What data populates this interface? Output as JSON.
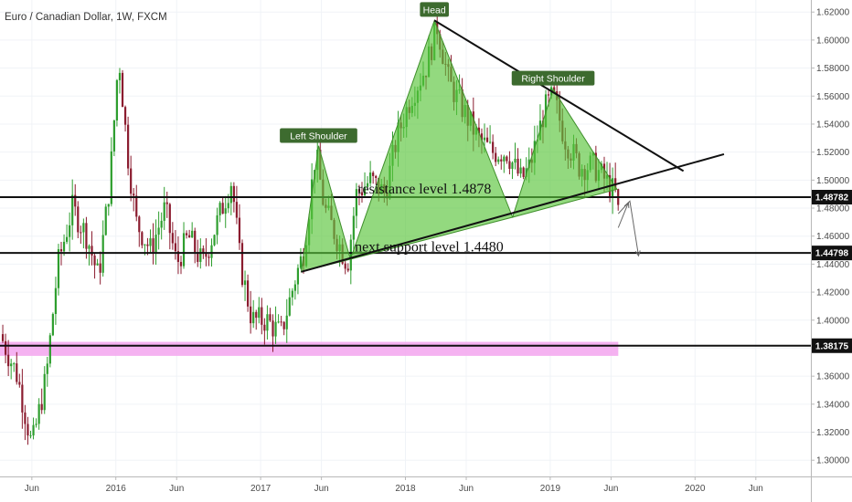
{
  "chart_data": {
    "type": "candlestick",
    "title": "Euro / Canadian Dollar, 1W, FXCM",
    "ylim": [
      1.2884,
      1.6286
    ],
    "xlim": [
      2015.2,
      2020.8
    ],
    "y_ticks": [
      "1.62000",
      "1.60000",
      "1.58000",
      "1.56000",
      "1.54000",
      "1.52000",
      "1.50000",
      "1.48000",
      "1.46000",
      "1.44000",
      "1.42000",
      "1.40000",
      "1.38000",
      "1.36000",
      "1.34000",
      "1.32000",
      "1.30000"
    ],
    "x_ticks": [
      {
        "label": "Jun",
        "t": 2015.42
      },
      {
        "label": "2016",
        "t": 2016.0
      },
      {
        "label": "Jun",
        "t": 2016.42
      },
      {
        "label": "2017",
        "t": 2017.0
      },
      {
        "label": "Jun",
        "t": 2017.42
      },
      {
        "label": "2018",
        "t": 2018.0
      },
      {
        "label": "Jun",
        "t": 2018.42
      },
      {
        "label": "2019",
        "t": 2019.0
      },
      {
        "label": "Jun",
        "t": 2019.42
      },
      {
        "label": "2020",
        "t": 2020.0
      },
      {
        "label": "Jun",
        "t": 2020.42
      }
    ],
    "price_path": [
      [
        2015.2,
        1.39
      ],
      [
        2015.32,
        1.36
      ],
      [
        2015.42,
        1.31
      ],
      [
        2015.52,
        1.36
      ],
      [
        2015.6,
        1.44
      ],
      [
        2015.7,
        1.48
      ],
      [
        2015.8,
        1.46
      ],
      [
        2015.88,
        1.43
      ],
      [
        2015.96,
        1.5
      ],
      [
        2016.02,
        1.59
      ],
      [
        2016.08,
        1.52
      ],
      [
        2016.14,
        1.47
      ],
      [
        2016.24,
        1.45
      ],
      [
        2016.34,
        1.48
      ],
      [
        2016.42,
        1.44
      ],
      [
        2016.5,
        1.46
      ],
      [
        2016.6,
        1.44
      ],
      [
        2016.7,
        1.47
      ],
      [
        2016.8,
        1.5
      ],
      [
        2016.86,
        1.44
      ],
      [
        2016.94,
        1.4
      ],
      [
        2017.04,
        1.4
      ],
      [
        2017.14,
        1.39
      ],
      [
        2017.24,
        1.43
      ],
      [
        2017.3,
        1.45
      ],
      [
        2017.38,
        1.52
      ],
      [
        2017.44,
        1.48
      ],
      [
        2017.52,
        1.46
      ],
      [
        2017.6,
        1.44
      ],
      [
        2017.66,
        1.49
      ],
      [
        2017.76,
        1.5
      ],
      [
        2017.86,
        1.49
      ],
      [
        2017.94,
        1.53
      ],
      [
        2018.04,
        1.56
      ],
      [
        2018.14,
        1.58
      ],
      [
        2018.22,
        1.61
      ],
      [
        2018.3,
        1.57
      ],
      [
        2018.4,
        1.55
      ],
      [
        2018.5,
        1.53
      ],
      [
        2018.6,
        1.52
      ],
      [
        2018.7,
        1.52
      ],
      [
        2018.8,
        1.5
      ],
      [
        2018.86,
        1.51
      ],
      [
        2018.96,
        1.55
      ],
      [
        2019.02,
        1.56
      ],
      [
        2019.1,
        1.53
      ],
      [
        2019.2,
        1.51
      ],
      [
        2019.3,
        1.51
      ],
      [
        2019.38,
        1.5
      ],
      [
        2019.45,
        1.49
      ],
      [
        2019.48,
        1.47
      ]
    ],
    "levels": [
      {
        "value": 1.48782,
        "label": "1.48782"
      },
      {
        "value": 1.44798,
        "label": "1.44798"
      },
      {
        "value": 1.38175,
        "label": "1.38175"
      }
    ],
    "support_zone": {
      "t0": 2015.2,
      "t1": 2019.47,
      "y0": 1.3745,
      "y1": 1.3845
    },
    "pattern": {
      "left_shoulder": [
        [
          2017.28,
          1.4345
        ],
        [
          2017.4,
          1.5245
        ],
        [
          2017.62,
          1.4435
        ]
      ],
      "head": [
        [
          2017.62,
          1.4435
        ],
        [
          2018.2,
          1.614
        ],
        [
          2018.74,
          1.4735
        ]
      ],
      "right_shoulder": [
        [
          2018.74,
          1.4735
        ],
        [
          2019.02,
          1.565
        ],
        [
          2019.46,
          1.4935
        ]
      ],
      "neckline": [
        [
          2017.28,
          1.4345
        ],
        [
          2020.2,
          1.5185
        ]
      ],
      "top_line": [
        [
          2018.2,
          1.614
        ],
        [
          2019.92,
          1.5065
        ]
      ],
      "labels": [
        {
          "text": "Left Shoulder",
          "t": 2017.4,
          "y": 1.5318
        },
        {
          "text": "Head",
          "t": 2018.2,
          "y": 1.6218
        },
        {
          "text": "Right Shoulder",
          "t": 2019.02,
          "y": 1.5728
        }
      ]
    },
    "projection": [
      [
        [
          2019.47,
          1.476
        ],
        [
          2019.55,
          1.485
        ],
        [
          2019.61,
          1.446
        ]
      ],
      [
        [
          2019.47,
          1.466
        ],
        [
          2019.54,
          1.484
        ]
      ]
    ],
    "annotations": [
      {
        "text": "resistance level 1.4878",
        "t": 2017.67,
        "y": 1.4878
      },
      {
        "text": "next support level 1.4480",
        "t": 2017.65,
        "y": 1.4465
      }
    ],
    "colors": {
      "up": "#2e9e2e",
      "down": "#8b1c2f",
      "pattern_fill": "#59c43a",
      "pattern_fill_opacity": 0.65,
      "pattern_stroke": "#3e8e2a",
      "label_bg": "#3d6b2f",
      "zone": "#f3a4ee",
      "level_line": "#111111",
      "tag_bg": "#111111",
      "axis_text": "#4a4a4a",
      "grid": "#f0f3f7"
    }
  }
}
